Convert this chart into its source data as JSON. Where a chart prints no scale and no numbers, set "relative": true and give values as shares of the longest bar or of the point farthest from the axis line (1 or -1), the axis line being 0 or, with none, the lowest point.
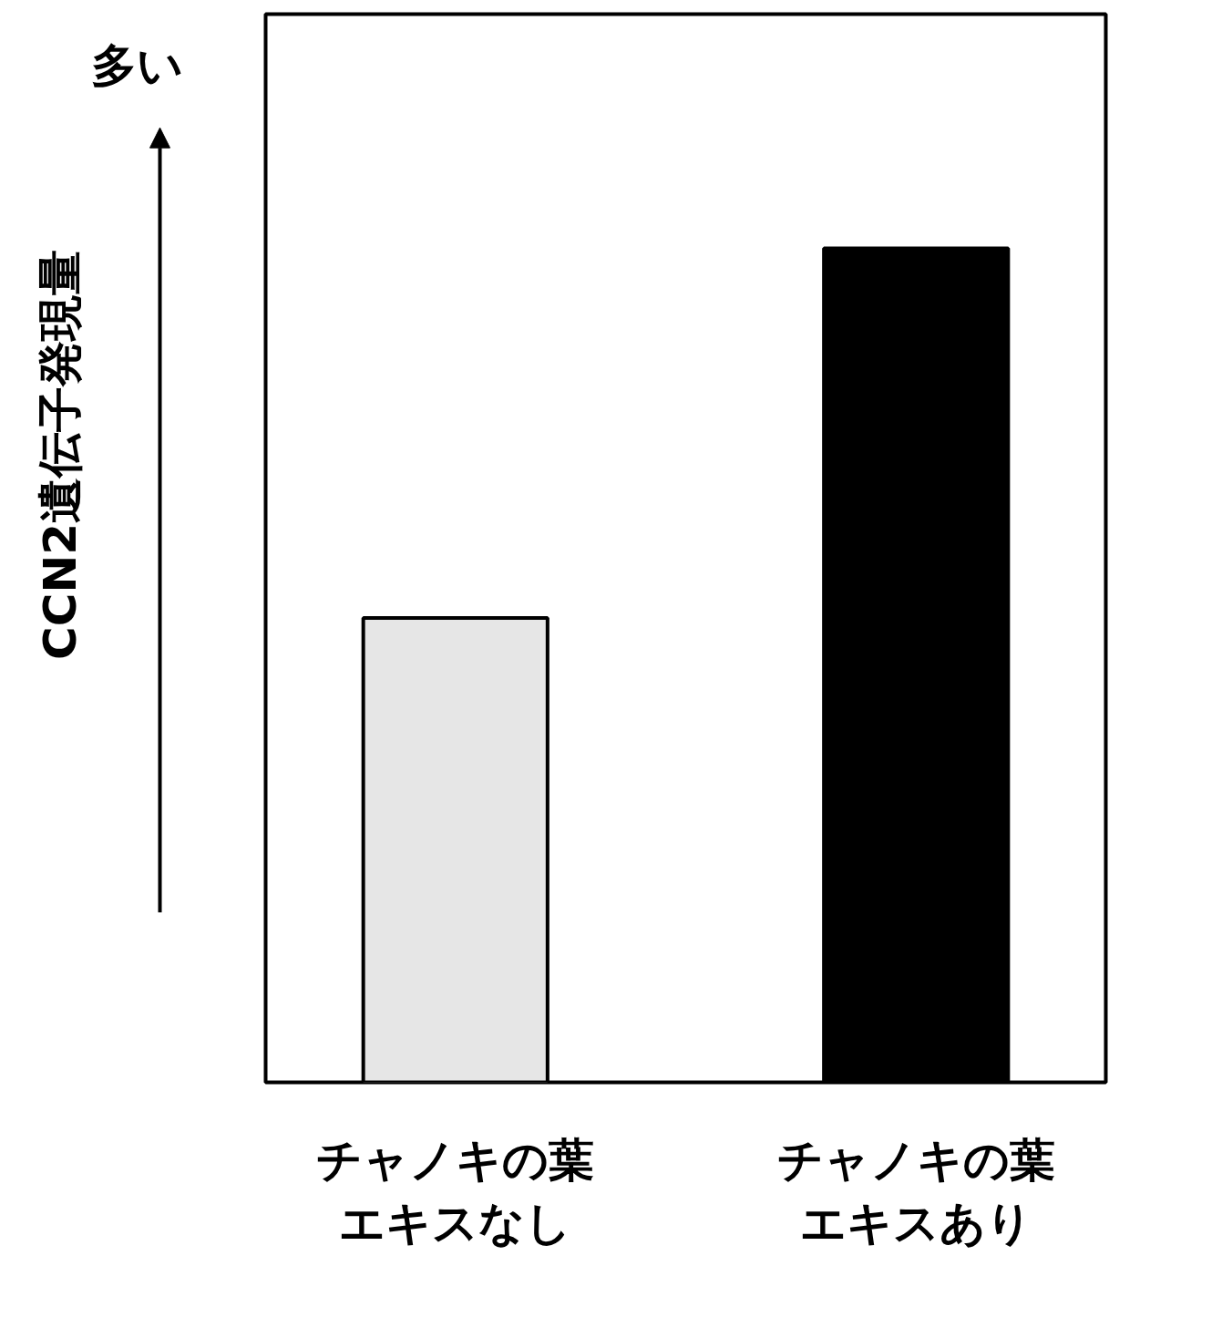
{
  "chart_data": {
    "type": "bar",
    "relative": true,
    "ylabel": "CCN2遺伝子発現量",
    "annotations": [
      "多い"
    ],
    "categories": [
      "チャノキの葉エキスなし",
      "チャノキの葉エキスあり"
    ],
    "values": [
      0.557,
      1
    ],
    "colors": [
      "#e6e6e6",
      "#000000"
    ],
    "grid": false
  }
}
